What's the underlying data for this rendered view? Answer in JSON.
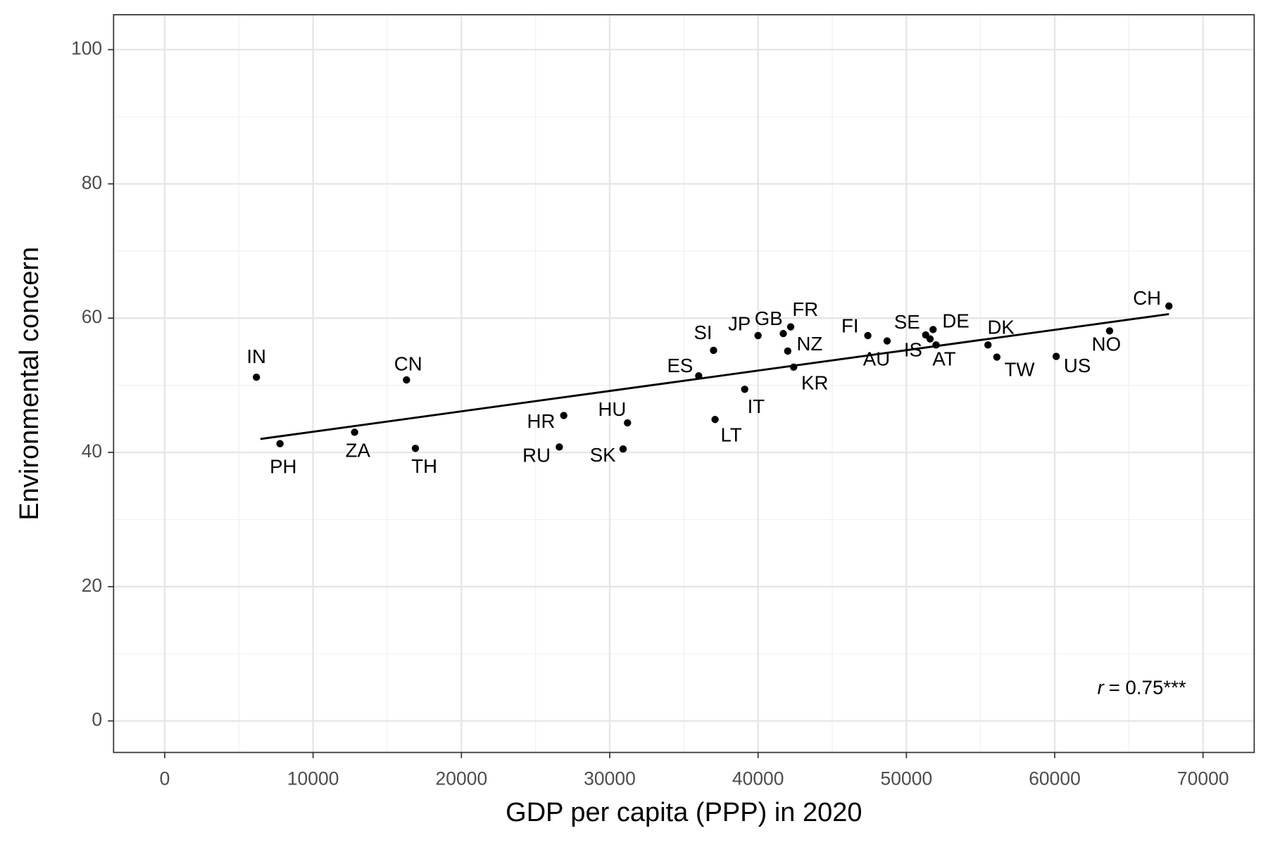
{
  "chart_data": {
    "type": "scatter",
    "x_label": "GDP per capita (PPP) in 2020",
    "y_label": "Environmental concern",
    "xlim": [
      -3450,
      73450
    ],
    "ylim": [
      -4.7,
      105.2
    ],
    "xticks": [
      0,
      10000,
      20000,
      30000,
      40000,
      50000,
      60000,
      70000
    ],
    "yticks": [
      0,
      20,
      40,
      60,
      80,
      100
    ],
    "grid": true,
    "color": "#000000",
    "labels": [
      "IN",
      "PH",
      "ZA",
      "CN",
      "TH",
      "HR",
      "RU",
      "HU",
      "SK",
      "ES",
      "SI",
      "LT",
      "IT",
      "JP",
      "GB",
      "FR",
      "NZ",
      "KR",
      "FI",
      "AU",
      "SE",
      "IS",
      "DE",
      "AT",
      "DK",
      "TW",
      "US",
      "NO",
      "CH"
    ],
    "x": [
      6180,
      7770,
      12800,
      16300,
      16900,
      26900,
      26600,
      31200,
      30900,
      36000,
      37000,
      37100,
      39100,
      40000,
      41700,
      42200,
      42000,
      42400,
      47400,
      48700,
      51300,
      51600,
      51800,
      52000,
      55500,
      56100,
      60100,
      63700,
      67700
    ],
    "y": [
      51.2,
      41.3,
      43.0,
      50.8,
      40.6,
      45.5,
      40.8,
      44.4,
      40.5,
      51.4,
      55.2,
      44.9,
      49.4,
      57.4,
      57.7,
      58.7,
      55.1,
      52.7,
      57.4,
      56.6,
      57.5,
      56.9,
      58.3,
      56.0,
      56.0,
      54.2,
      54.3,
      58.1,
      61.8
    ],
    "trend": {
      "x": [
        6450,
        67700
      ],
      "y": [
        42.0,
        60.6
      ]
    },
    "annotation": {
      "symbol": "r",
      "text": "= 0.75***"
    }
  }
}
